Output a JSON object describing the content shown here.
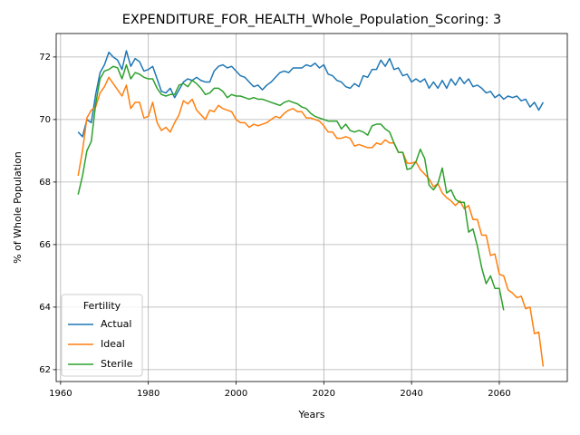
{
  "chart_data": {
    "type": "line",
    "title": "EXPENDITURE_FOR_HEALTH_Whole_Population_Scoring: 3",
    "x_label": "Years",
    "y_label": "% of Whole Population",
    "legend_title": "Fertility",
    "legend_position": "lower left",
    "grid": true,
    "xlim": [
      1959,
      2075.5
    ],
    "ylim": [
      61.62,
      72.75
    ],
    "xticks": [
      1960,
      1980,
      2000,
      2020,
      2040,
      2060
    ],
    "yticks": [
      62,
      64,
      66,
      68,
      70,
      72
    ],
    "x": [
      1964,
      1965,
      1966,
      1967,
      1968,
      1969,
      1970,
      1971,
      1972,
      1973,
      1974,
      1975,
      1976,
      1977,
      1978,
      1979,
      1980,
      1981,
      1982,
      1983,
      1984,
      1985,
      1986,
      1987,
      1988,
      1989,
      1990,
      1991,
      1992,
      1993,
      1994,
      1995,
      1996,
      1997,
      1998,
      1999,
      2000,
      2001,
      2002,
      2003,
      2004,
      2005,
      2006,
      2007,
      2008,
      2009,
      2010,
      2011,
      2012,
      2013,
      2014,
      2015,
      2016,
      2017,
      2018,
      2019,
      2020,
      2021,
      2022,
      2023,
      2024,
      2025,
      2026,
      2027,
      2028,
      2029,
      2030,
      2031,
      2032,
      2033,
      2034,
      2035,
      2036,
      2037,
      2038,
      2039,
      2040,
      2041,
      2042,
      2043,
      2044,
      2045,
      2046,
      2047,
      2048,
      2049,
      2050,
      2051,
      2052,
      2053,
      2054,
      2055,
      2056,
      2057,
      2058,
      2059,
      2060,
      2061,
      2062,
      2063,
      2064,
      2065,
      2066,
      2067,
      2068,
      2069,
      2070
    ],
    "series": [
      {
        "name": "Actual",
        "color": "#1f77b4",
        "values": [
          69.6,
          69.45,
          70.0,
          69.9,
          70.8,
          71.5,
          71.75,
          72.15,
          72.0,
          71.9,
          71.6,
          72.2,
          71.7,
          71.95,
          71.85,
          71.55,
          71.6,
          71.7,
          71.3,
          70.9,
          70.85,
          71.0,
          70.7,
          70.95,
          71.2,
          71.3,
          71.25,
          71.35,
          71.25,
          71.2,
          71.2,
          71.55,
          71.7,
          71.75,
          71.65,
          71.7,
          71.55,
          71.4,
          71.35,
          71.2,
          71.05,
          71.1,
          70.95,
          71.1,
          71.2,
          71.35,
          71.5,
          71.55,
          71.5,
          71.65,
          71.65,
          71.65,
          71.75,
          71.7,
          71.8,
          71.65,
          71.75,
          71.45,
          71.4,
          71.25,
          71.2,
          71.05,
          71.0,
          71.15,
          71.05,
          71.4,
          71.35,
          71.6,
          71.6,
          71.9,
          71.7,
          71.95,
          71.6,
          71.65,
          71.4,
          71.45,
          71.2,
          71.3,
          71.2,
          71.3,
          71.0,
          71.2,
          71.0,
          71.25,
          71.0,
          71.3,
          71.1,
          71.35,
          71.15,
          71.3,
          71.05,
          71.1,
          71.0,
          70.85,
          70.9,
          70.7,
          70.8,
          70.65,
          70.75,
          70.7,
          70.75,
          70.6,
          70.65,
          70.4,
          70.55,
          70.3,
          70.55
        ]
      },
      {
        "name": "Ideal",
        "color": "#ff7f0e",
        "values": [
          68.2,
          69.0,
          70.05,
          70.3,
          70.4,
          70.85,
          71.05,
          71.35,
          71.15,
          70.95,
          70.75,
          71.1,
          70.35,
          70.55,
          70.55,
          70.05,
          70.1,
          70.55,
          69.9,
          69.65,
          69.75,
          69.6,
          69.9,
          70.15,
          70.6,
          70.5,
          70.65,
          70.3,
          70.15,
          70.0,
          70.3,
          70.25,
          70.45,
          70.35,
          70.3,
          70.25,
          70.0,
          69.9,
          69.9,
          69.75,
          69.85,
          69.8,
          69.85,
          69.9,
          70.0,
          70.1,
          70.05,
          70.2,
          70.3,
          70.35,
          70.25,
          70.25,
          70.05,
          70.05,
          70.0,
          69.95,
          69.8,
          69.6,
          69.6,
          69.4,
          69.4,
          69.45,
          69.4,
          69.15,
          69.2,
          69.15,
          69.1,
          69.1,
          69.25,
          69.2,
          69.35,
          69.25,
          69.25,
          68.95,
          68.95,
          68.6,
          68.6,
          68.65,
          68.4,
          68.25,
          68.1,
          67.85,
          67.95,
          67.65,
          67.5,
          67.4,
          67.25,
          67.4,
          67.15,
          67.25,
          66.8,
          66.8,
          66.3,
          66.3,
          65.65,
          65.7,
          65.05,
          65.0,
          64.55,
          64.45,
          64.3,
          64.35,
          63.95,
          64.0,
          63.15,
          63.2,
          62.1
        ]
      },
      {
        "name": "Sterile",
        "color": "#2ca02c",
        "values": [
          67.6,
          68.2,
          69.0,
          69.3,
          70.5,
          71.3,
          71.55,
          71.6,
          71.7,
          71.65,
          71.3,
          71.75,
          71.3,
          71.5,
          71.45,
          71.35,
          71.3,
          71.3,
          71.0,
          70.8,
          70.75,
          70.8,
          70.8,
          71.1,
          71.15,
          71.05,
          71.25,
          71.15,
          71.0,
          70.8,
          70.85,
          71.0,
          71.0,
          70.9,
          70.7,
          70.8,
          70.75,
          70.75,
          70.7,
          70.65,
          70.7,
          70.65,
          70.65,
          70.6,
          70.55,
          70.5,
          70.45,
          70.55,
          70.6,
          70.55,
          70.5,
          70.4,
          70.35,
          70.2,
          70.1,
          70.05,
          70.0,
          69.95,
          69.95,
          69.95,
          69.7,
          69.85,
          69.65,
          69.6,
          69.65,
          69.6,
          69.5,
          69.8,
          69.85,
          69.85,
          69.7,
          69.6,
          69.25,
          68.95,
          68.95,
          68.4,
          68.45,
          68.65,
          69.05,
          68.75,
          67.9,
          67.75,
          67.95,
          68.45,
          67.65,
          67.75,
          67.45,
          67.35,
          67.35,
          66.4,
          66.5,
          65.95,
          65.25,
          64.75,
          65.0,
          64.6,
          64.6,
          63.9,
          null,
          null,
          null,
          null,
          null,
          null,
          null,
          null,
          null
        ]
      }
    ]
  }
}
